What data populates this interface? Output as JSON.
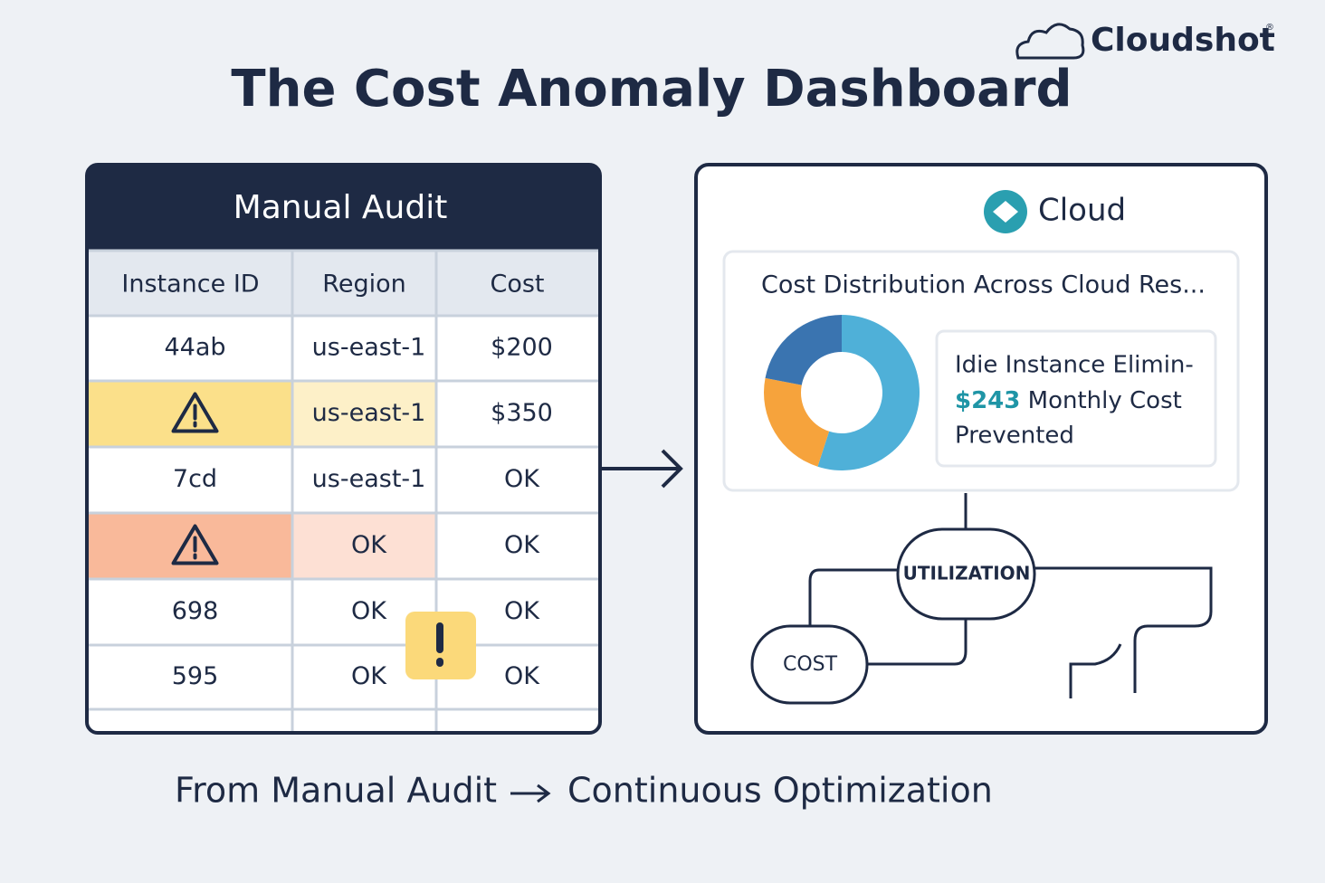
{
  "header": {
    "title": "The Cost Anomaly Dashboard",
    "logo": "Cloudshot",
    "logo_mark": "®"
  },
  "audit": {
    "title": "Manual Audit",
    "columns": [
      "Instance ID",
      "Region",
      "Cost"
    ],
    "rows": [
      [
        "44ab",
        "us-east-1",
        "$200"
      ],
      [
        null,
        "us-east-1",
        "$350"
      ],
      [
        "7cd",
        "us-east-1",
        "OK"
      ],
      [
        null,
        "OK",
        "OK"
      ],
      [
        "698",
        "OK",
        "OK"
      ],
      [
        "595",
        "OK",
        "OK"
      ]
    ]
  },
  "panel": {
    "brand": "Cloud",
    "card_title": "Cost Distribution Across Cloud Res...",
    "donut": {
      "values": [
        55,
        23,
        22
      ],
      "colors": [
        "#4fb0d8",
        "#f6a33c",
        "#3a74b0"
      ]
    },
    "callout": {
      "line1": "Idie Instance Elimin-",
      "amount": "$243",
      "line2": "Monthly Cost",
      "line3": "Prevented"
    },
    "nodes": [
      "UTILIZATION",
      "COST"
    ]
  },
  "footer": {
    "from": "From Manual Audit",
    "to": "Continuous Optimization"
  }
}
